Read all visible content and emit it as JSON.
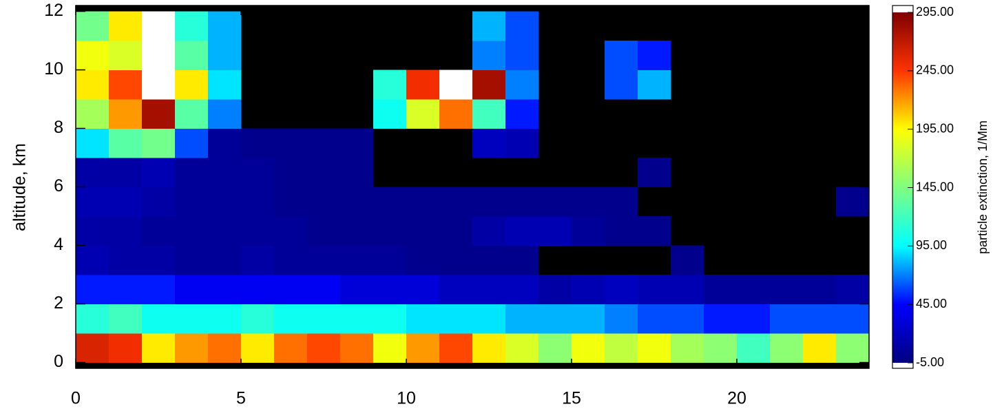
{
  "chart_data": {
    "type": "heatmap",
    "ylabel": "altitude, km",
    "colorbar_label": "particle extinction, 1/Mm",
    "xlim": [
      0,
      24
    ],
    "ylim": [
      -0.2,
      12.2
    ],
    "xticks": [
      0,
      5,
      10,
      15,
      20
    ],
    "yticks": [
      0,
      2,
      4,
      6,
      8,
      10,
      12
    ],
    "clim": [
      -5,
      295
    ],
    "cticks": [
      {
        "value": -5,
        "label": "-5.00"
      },
      {
        "value": 45,
        "label": "45.00"
      },
      {
        "value": 95,
        "label": "95.00"
      },
      {
        "value": 145,
        "label": "145.00"
      },
      {
        "value": 195,
        "label": "195.00"
      },
      {
        "value": 245,
        "label": "245.00"
      },
      {
        "value": 295,
        "label": "295.00"
      }
    ],
    "colorscale": [
      "#00007f",
      "#0000ff",
      "#00ffff",
      "#7fff7f",
      "#ffff00",
      "#ff3300",
      "#7f0000"
    ],
    "over_color": "#ffffff",
    "missing_color": "#000000",
    "x_edges": [
      0,
      1,
      2,
      3,
      4,
      5,
      6,
      7,
      8,
      9,
      10,
      11,
      12,
      13,
      14,
      15,
      16,
      17,
      18,
      19,
      20,
      21,
      22,
      23,
      24
    ],
    "y_edges": [
      0,
      1,
      2,
      3,
      4,
      5,
      6,
      7,
      8,
      9,
      10,
      11,
      12
    ],
    "z": [
      [
        260,
        250,
        200,
        220,
        230,
        200,
        230,
        240,
        230,
        190,
        220,
        240,
        200,
        180,
        150,
        190,
        170,
        190,
        160,
        150,
        120,
        150,
        200,
        150
      ],
      [
        110,
        120,
        100,
        100,
        100,
        110,
        100,
        100,
        100,
        100,
        90,
        90,
        90,
        80,
        80,
        80,
        70,
        60,
        60,
        50,
        50,
        60,
        60,
        60
      ],
      [
        50,
        50,
        50,
        40,
        40,
        40,
        40,
        40,
        30,
        30,
        30,
        20,
        20,
        20,
        10,
        15,
        20,
        15,
        15,
        5,
        5,
        5,
        5,
        10
      ],
      [
        15,
        10,
        10,
        5,
        5,
        10,
        5,
        5,
        5,
        5,
        0,
        0,
        0,
        0,
        null,
        null,
        null,
        null,
        0,
        null,
        null,
        null,
        null,
        null
      ],
      [
        10,
        10,
        5,
        5,
        5,
        5,
        5,
        0,
        0,
        0,
        0,
        0,
        10,
        15,
        15,
        5,
        0,
        0,
        null,
        null,
        null,
        null,
        null,
        null
      ],
      [
        15,
        15,
        10,
        5,
        5,
        5,
        0,
        0,
        0,
        0,
        0,
        0,
        0,
        0,
        0,
        0,
        0,
        null,
        null,
        null,
        null,
        null,
        null,
        0
      ],
      [
        10,
        10,
        15,
        5,
        5,
        5,
        0,
        0,
        0,
        null,
        null,
        null,
        null,
        null,
        null,
        null,
        null,
        0,
        null,
        null,
        null,
        null,
        null,
        null
      ],
      [
        90,
        130,
        140,
        60,
        5,
        0,
        0,
        0,
        0,
        null,
        null,
        null,
        20,
        15,
        null,
        null,
        null,
        null,
        null,
        null,
        null,
        null,
        null,
        null
      ],
      [
        160,
        220,
        280,
        130,
        70,
        null,
        null,
        null,
        null,
        100,
        180,
        230,
        120,
        50,
        null,
        null,
        null,
        null,
        null,
        null,
        null,
        null,
        null,
        null
      ],
      [
        200,
        240,
        300,
        200,
        90,
        null,
        null,
        null,
        null,
        110,
        250,
        300,
        280,
        70,
        null,
        null,
        60,
        80,
        null,
        null,
        null,
        null,
        null,
        null
      ],
      [
        190,
        180,
        300,
        130,
        80,
        null,
        null,
        null,
        null,
        null,
        null,
        null,
        70,
        60,
        null,
        null,
        60,
        50,
        null,
        null,
        null,
        null,
        null,
        null
      ],
      [
        140,
        200,
        300,
        110,
        80,
        null,
        null,
        null,
        null,
        null,
        null,
        null,
        80,
        60,
        null,
        null,
        null,
        null,
        null,
        null,
        null,
        null,
        null,
        null
      ]
    ]
  }
}
